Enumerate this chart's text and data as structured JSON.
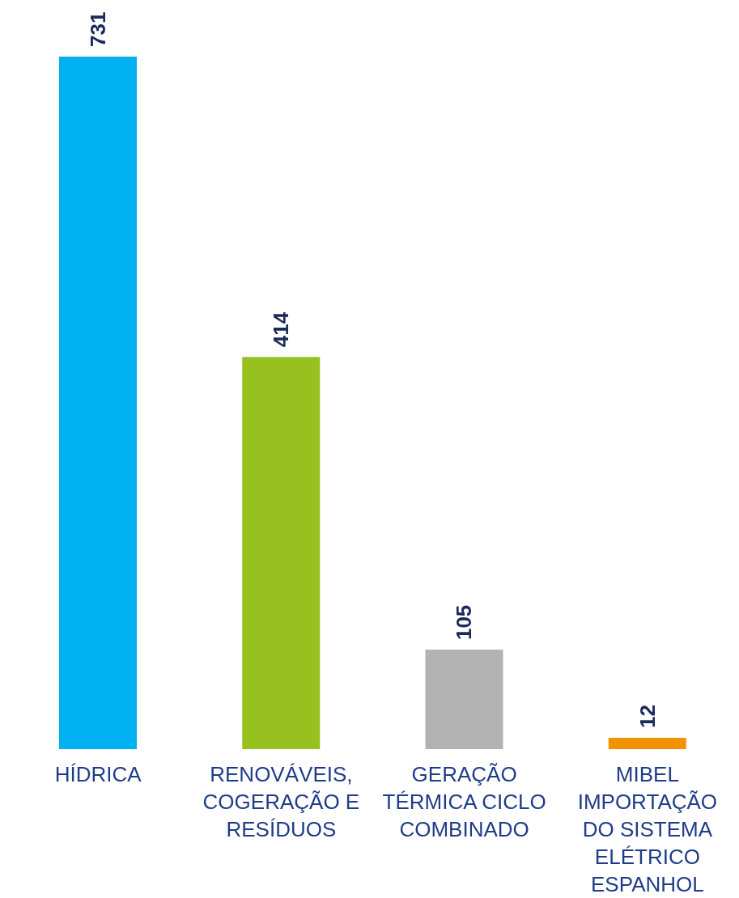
{
  "chart_data": {
    "type": "bar",
    "categories": [
      "HÍDRICA",
      "RENOVÁVEIS,\nCOGERAÇÃO E\nRESÍDUOS",
      "GERAÇÃO\nTÉRMICA CICLO\nCOMBINADO",
      "MIBEL\nIMPORTAÇÃO\nDO SISTEMA\nELÉTRICO\nESPANHOL"
    ],
    "values": [
      731,
      414,
      105,
      12
    ],
    "colors": [
      "#00b0f0",
      "#97c11f",
      "#b2b2b2",
      "#f39200"
    ],
    "data_labels": true
  }
}
